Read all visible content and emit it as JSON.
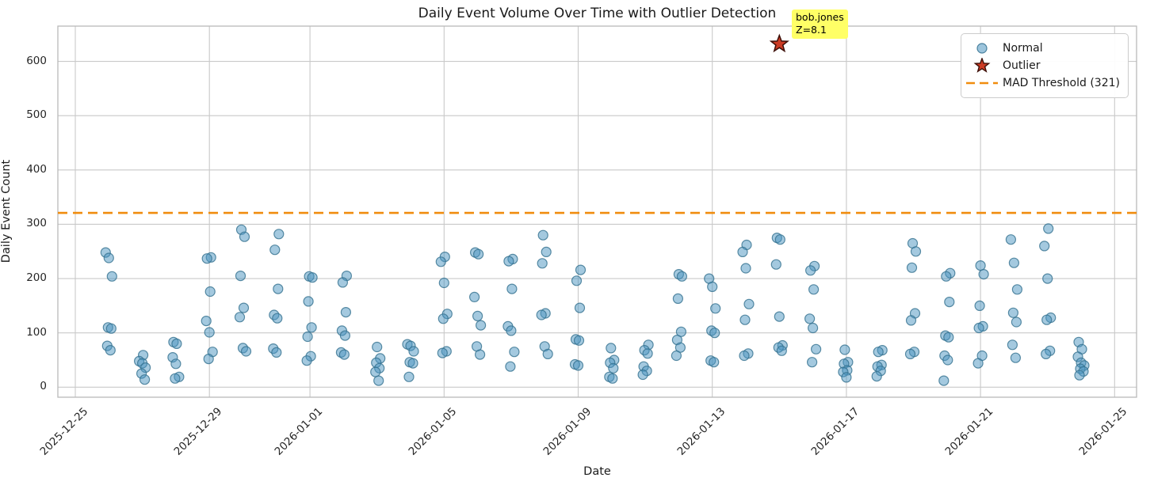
{
  "title": "Daily Event Volume Over Time with Outlier Detection",
  "annotation": {
    "line1": "bob.jones",
    "line2": "Z=8.1"
  },
  "legend": {
    "normal_label": "Normal",
    "outlier_label": "Outlier",
    "threshold_label": "MAD Threshold (321)"
  },
  "colors": {
    "normal_fill": "#4a94bf",
    "normal_edge": "#33708f",
    "outlier_fill": "#cc3b24",
    "outlier_edge": "#3d0f08",
    "threshold": "#f08c0e",
    "grid": "#c9c9c9",
    "spine": "#b9b9b9",
    "annotation_bg": "#ffff66",
    "text": "#262626"
  },
  "chart_data": {
    "type": "scatter",
    "title": "Daily Event Volume Over Time with Outlier Detection",
    "xlabel": "Date",
    "ylabel": "Daily Event Count",
    "grid": true,
    "legend_position": "upper right",
    "x_ticks": [
      "2025-12-25",
      "2025-12-29",
      "2026-01-01",
      "2026-01-05",
      "2026-01-09",
      "2026-01-13",
      "2026-01-17",
      "2026-01-21",
      "2026-01-25"
    ],
    "y_ticks": [
      0,
      100,
      200,
      300,
      400,
      500,
      600
    ],
    "ylim": [
      -20,
      665
    ],
    "threshold": {
      "value": 321,
      "label": "MAD Threshold (321)",
      "style": "dashed"
    },
    "series": [
      {
        "name": "Normal",
        "points_by_day": [
          {
            "date": "2025-12-26",
            "values": [
              248,
              238,
              204,
              110,
              108,
              76,
              68
            ]
          },
          {
            "date": "2025-12-27",
            "values": [
              59,
              48,
              44,
              36,
              25,
              14
            ]
          },
          {
            "date": "2025-12-28",
            "values": [
              83,
              80,
              55,
              43,
              19,
              16
            ]
          },
          {
            "date": "2025-12-29",
            "values": [
              239,
              237,
              176,
              122,
              101,
              65,
              52
            ]
          },
          {
            "date": "2025-12-30",
            "values": [
              290,
              277,
              205,
              146,
              129,
              72,
              66
            ]
          },
          {
            "date": "2025-12-31",
            "values": [
              282,
              253,
              181,
              133,
              127,
              71,
              64
            ]
          },
          {
            "date": "2026-01-01",
            "values": [
              204,
              202,
              158,
              110,
              93,
              57,
              49
            ]
          },
          {
            "date": "2026-01-02",
            "values": [
              205,
              193,
              138,
              104,
              95,
              64,
              60
            ]
          },
          {
            "date": "2026-01-03",
            "values": [
              74,
              53,
              45,
              35,
              28,
              12
            ]
          },
          {
            "date": "2026-01-04",
            "values": [
              79,
              76,
              66,
              46,
              44,
              19
            ]
          },
          {
            "date": "2026-01-05",
            "values": [
              240,
              231,
              192,
              135,
              126,
              66,
              63
            ]
          },
          {
            "date": "2026-01-06",
            "values": [
              248,
              245,
              166,
              131,
              114,
              75,
              60
            ]
          },
          {
            "date": "2026-01-07",
            "values": [
              236,
              232,
              181,
              112,
              104,
              65,
              38
            ]
          },
          {
            "date": "2026-01-08",
            "values": [
              280,
              249,
              228,
              136,
              133,
              75,
              61
            ]
          },
          {
            "date": "2026-01-09",
            "values": [
              216,
              196,
              146,
              88,
              86,
              42,
              40
            ]
          },
          {
            "date": "2026-01-10",
            "values": [
              72,
              50,
              45,
              35,
              19,
              16
            ]
          },
          {
            "date": "2026-01-11",
            "values": [
              78,
              68,
              62,
              38,
              30,
              23
            ]
          },
          {
            "date": "2026-01-12",
            "values": [
              208,
              204,
              163,
              102,
              87,
              73,
              58
            ]
          },
          {
            "date": "2026-01-13",
            "values": [
              200,
              185,
              145,
              104,
              100,
              49,
              46
            ]
          },
          {
            "date": "2026-01-14",
            "values": [
              262,
              249,
              219,
              153,
              124,
              62,
              58
            ]
          },
          {
            "date": "2026-01-15",
            "values": [
              275,
              272,
              226,
              130,
              77,
              73,
              67
            ]
          },
          {
            "date": "2026-01-16",
            "values": [
              223,
              215,
              180,
              126,
              109,
              70,
              46
            ]
          },
          {
            "date": "2026-01-17",
            "values": [
              69,
              46,
              43,
              31,
              28,
              18
            ]
          },
          {
            "date": "2026-01-18",
            "values": [
              68,
              65,
              41,
              38,
              30,
              20
            ]
          },
          {
            "date": "2026-01-19",
            "values": [
              265,
              250,
              220,
              136,
              123,
              65,
              61
            ]
          },
          {
            "date": "2026-01-20",
            "values": [
              210,
              204,
              157,
              95,
              92,
              58,
              50,
              12
            ]
          },
          {
            "date": "2026-01-21",
            "values": [
              224,
              208,
              150,
              112,
              109,
              58,
              44
            ]
          },
          {
            "date": "2026-01-22",
            "values": [
              272,
              229,
              180,
              137,
              120,
              78,
              54
            ]
          },
          {
            "date": "2026-01-23",
            "values": [
              292,
              260,
              200,
              128,
              124,
              67,
              61
            ]
          },
          {
            "date": "2026-01-24",
            "values": [
              83,
              70,
              56,
              45,
              40,
              34,
              29,
              22
            ]
          }
        ]
      },
      {
        "name": "Outlier",
        "points": [
          {
            "date": "2026-01-15",
            "value": 632,
            "user": "bob.jones",
            "zscore": "Z=8.1"
          }
        ]
      }
    ]
  }
}
